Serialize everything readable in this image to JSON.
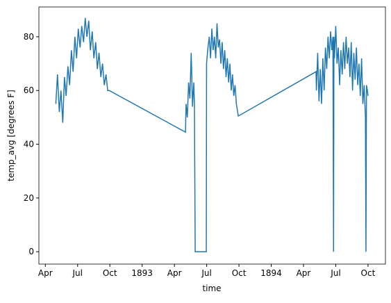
{
  "chart_data": {
    "type": "line",
    "xlabel": "time",
    "ylabel": "temp_avg [degrees F]",
    "x": [
      1892.331,
      1892.344,
      1892.358,
      1892.371,
      1892.385,
      1892.398,
      1892.411,
      1892.425,
      1892.438,
      1892.452,
      1892.465,
      1892.479,
      1892.492,
      1892.505,
      1892.519,
      1892.532,
      1892.546,
      1892.559,
      1892.572,
      1892.586,
      1892.599,
      1892.613,
      1892.626,
      1892.64,
      1892.653,
      1892.666,
      1892.68,
      1892.693,
      1892.707,
      1892.72,
      1892.733,
      1892.745,
      1893.336,
      1893.34,
      1893.35,
      1893.36,
      1893.37,
      1893.38,
      1893.39,
      1893.4,
      1893.405,
      1893.411,
      1893.497,
      1893.499,
      1893.51,
      1893.52,
      1893.53,
      1893.54,
      1893.55,
      1893.56,
      1893.57,
      1893.58,
      1893.59,
      1893.6,
      1893.61,
      1893.62,
      1893.63,
      1893.64,
      1893.65,
      1893.66,
      1893.67,
      1893.68,
      1893.69,
      1893.7,
      1893.71,
      1893.72,
      1893.73,
      1893.745,
      1894.347,
      1894.35,
      1894.36,
      1894.37,
      1894.38,
      1894.39,
      1894.4,
      1894.41,
      1894.42,
      1894.43,
      1894.44,
      1894.45,
      1894.46,
      1894.47,
      1894.478,
      1894.483,
      1894.486,
      1894.49,
      1894.5,
      1894.51,
      1894.52,
      1894.53,
      1894.54,
      1894.55,
      1894.56,
      1894.57,
      1894.58,
      1894.59,
      1894.6,
      1894.61,
      1894.62,
      1894.63,
      1894.64,
      1894.65,
      1894.66,
      1894.67,
      1894.68,
      1894.69,
      1894.7,
      1894.71,
      1894.72,
      1894.73,
      1894.734,
      1894.738,
      1894.745,
      1894.75
    ],
    "series": [
      {
        "color": "#1f77b4",
        "values": [
          55,
          66,
          52,
          60,
          48,
          65,
          58,
          69,
          62,
          75,
          67,
          80,
          72,
          83,
          76,
          84,
          78,
          87,
          80,
          86,
          75,
          82,
          72,
          78,
          68,
          74,
          65,
          70,
          62,
          66,
          60,
          60,
          44.5,
          55,
          50,
          63,
          57,
          74,
          54,
          63,
          55,
          0,
          0,
          70,
          76,
          80,
          72,
          83,
          75,
          80,
          72,
          85,
          76,
          79,
          70,
          78,
          68,
          75,
          65,
          72,
          63,
          70,
          60,
          66,
          58,
          62,
          55,
          50.5,
          67,
          60,
          74,
          56,
          68,
          55,
          72,
          60,
          76,
          68,
          80,
          72,
          82,
          75,
          80,
          0,
          80,
          72,
          84,
          70,
          76,
          62,
          75,
          66,
          78,
          68,
          80,
          70,
          76,
          65,
          78,
          60,
          74,
          64,
          76,
          62,
          70,
          58,
          72,
          55,
          62,
          50,
          0,
          62,
          60,
          58
        ]
      }
    ],
    "xlim": [
      1892.2,
      1894.885
    ],
    "ylim": [
      -4.6,
      91.1
    ],
    "xticks": [
      {
        "value": 1892.25,
        "label": "Apr"
      },
      {
        "value": 1892.5,
        "label": "Jul"
      },
      {
        "value": 1892.75,
        "label": "Oct"
      },
      {
        "value": 1893,
        "label": "1893"
      },
      {
        "value": 1893.25,
        "label": "Apr"
      },
      {
        "value": 1893.5,
        "label": "Jul"
      },
      {
        "value": 1893.75,
        "label": "Oct"
      },
      {
        "value": 1894,
        "label": "1894"
      },
      {
        "value": 1894.25,
        "label": "Apr"
      },
      {
        "value": 1894.5,
        "label": "Jul"
      },
      {
        "value": 1894.75,
        "label": "Oct"
      }
    ],
    "yticks": [
      0,
      20,
      40,
      60,
      80
    ]
  }
}
